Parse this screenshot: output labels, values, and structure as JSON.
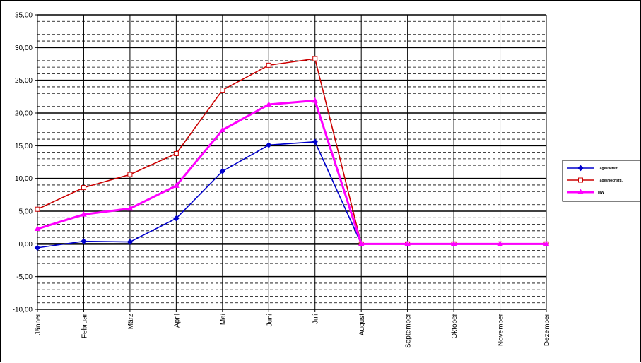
{
  "chart_data": {
    "type": "line",
    "title": "",
    "xlabel": "",
    "ylabel": "",
    "categories": [
      "Jänner",
      "Februar",
      "März",
      "April",
      "Mai",
      "Juni",
      "Juli",
      "August",
      "September",
      "Oktober",
      "November",
      "Dezember"
    ],
    "ylim": [
      -10,
      35
    ],
    "y_major_step": 5,
    "y_minor_step": 1,
    "y_tick_labels": [
      "-10,00",
      "-5,00",
      "0,00",
      "5,00",
      "10,00",
      "15,00",
      "20,00",
      "25,00",
      "30,00",
      "35,00"
    ],
    "grid": true,
    "legend_position": "right",
    "series": [
      {
        "name": "Tagestiefsttl.",
        "color": "#0000cc",
        "marker": "diamond",
        "values": [
          -0.6,
          0.4,
          0.3,
          3.9,
          11.1,
          15.1,
          15.6,
          0,
          0,
          0,
          0,
          0
        ]
      },
      {
        "name": "Tageshöchsttl.",
        "color": "#cc0000",
        "marker": "square",
        "values": [
          5.3,
          8.6,
          10.6,
          13.8,
          23.5,
          27.3,
          28.3,
          0,
          0,
          0,
          0,
          0
        ]
      },
      {
        "name": "MW",
        "color": "#ff00ff",
        "marker": "triangle",
        "values": [
          2.3,
          4.5,
          5.4,
          8.9,
          17.4,
          21.3,
          21.9,
          0,
          0,
          0,
          0,
          0
        ]
      }
    ]
  }
}
